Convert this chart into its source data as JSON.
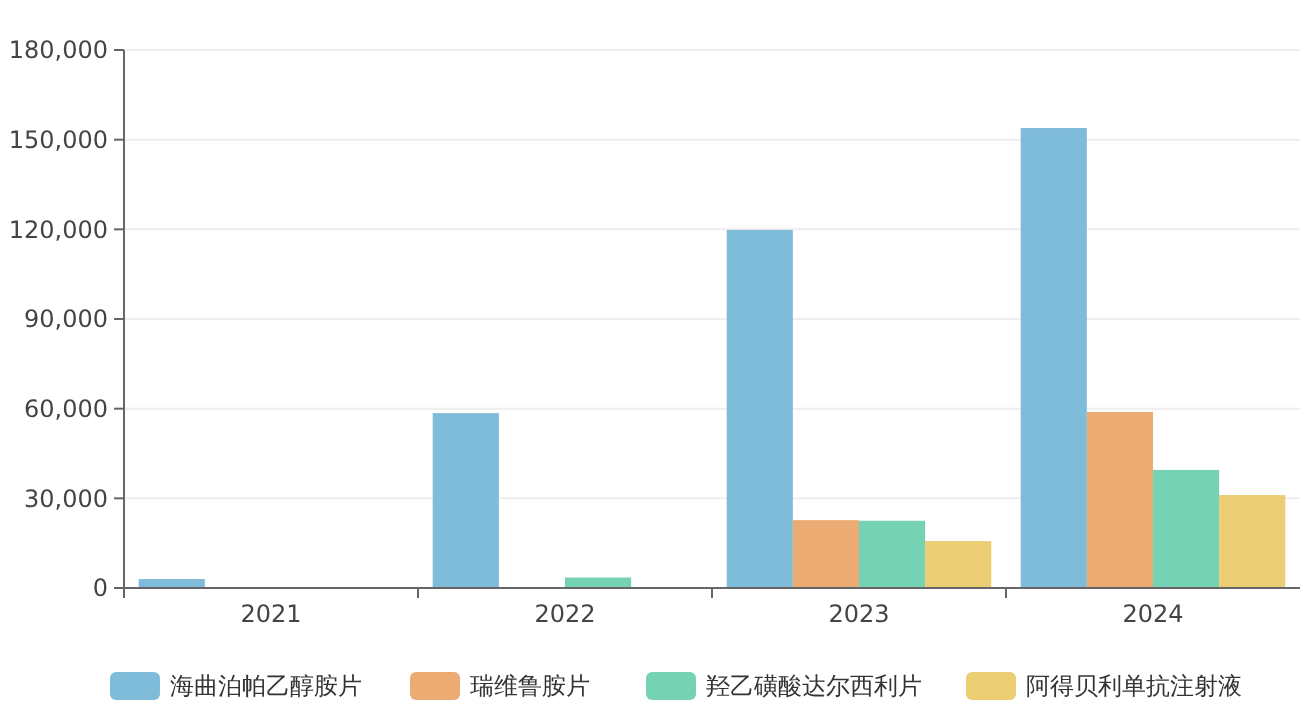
{
  "chart_data": {
    "type": "bar",
    "categories": [
      "2021",
      "2022",
      "2023",
      "2024"
    ],
    "series": [
      {
        "name": "海曲泊帕乙醇胺片",
        "color": "#7fbcd9",
        "values": [
          3000,
          58500,
          119800,
          153900
        ]
      },
      {
        "name": "瑞维鲁胺片",
        "color": "#ebab73",
        "values": [
          0,
          null,
          22700,
          58900
        ]
      },
      {
        "name": "羟乙磺酸达尔西利片",
        "color": "#75d3b4",
        "values": [
          0,
          3500,
          22500,
          39500
        ]
      },
      {
        "name": "阿得贝利单抗注射液",
        "color": "#ebcd74",
        "values": [
          0,
          0,
          15700,
          31100
        ]
      }
    ],
    "ylim": [
      0,
      180000
    ],
    "yticks": [
      {
        "value": 0,
        "label": "0"
      },
      {
        "value": 30000,
        "label": "30,000"
      },
      {
        "value": 60000,
        "label": "60,000"
      },
      {
        "value": 90000,
        "label": "90,000"
      },
      {
        "value": 120000,
        "label": "120,000"
      },
      {
        "value": 150000,
        "label": "150,000"
      },
      {
        "value": 180000,
        "label": "180,000"
      }
    ],
    "grid": "y",
    "legend": "bottom"
  }
}
